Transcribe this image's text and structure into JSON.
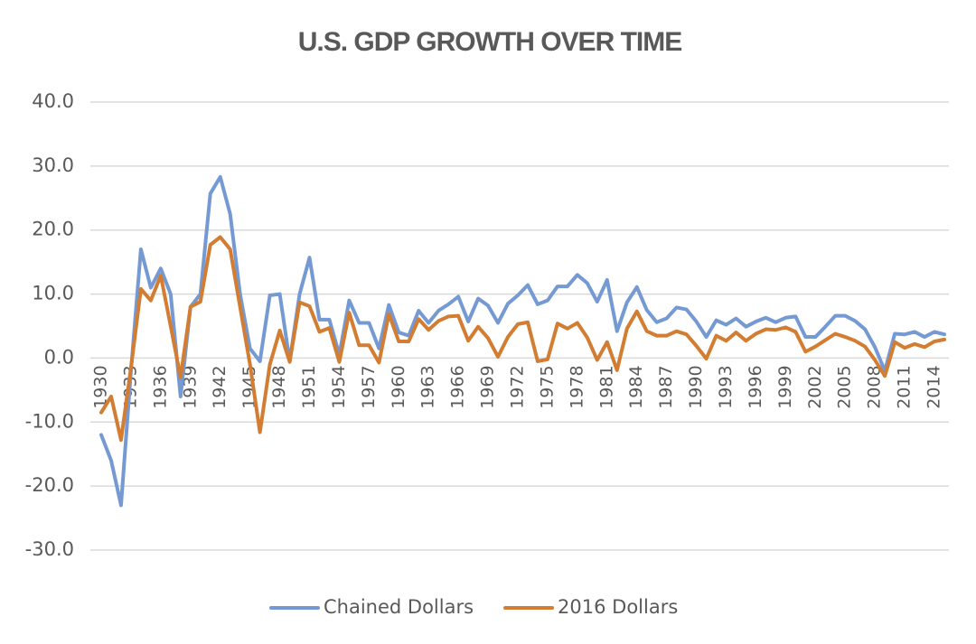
{
  "chart_data": {
    "type": "line",
    "title": "U.S. GDP GROWTH OVER TIME",
    "categories": [
      "1930",
      null,
      null,
      "1933",
      null,
      null,
      "1936",
      null,
      null,
      "1939",
      null,
      null,
      "1942",
      null,
      null,
      "1945",
      null,
      null,
      "1948",
      null,
      null,
      "1951",
      null,
      null,
      "1954",
      null,
      null,
      "1957",
      null,
      null,
      "1960",
      null,
      null,
      "1963",
      null,
      null,
      "1966",
      null,
      null,
      "1969",
      null,
      null,
      "1972",
      null,
      null,
      "1975",
      null,
      null,
      "1978",
      null,
      null,
      "1981",
      null,
      null,
      "1984",
      null,
      null,
      "1987",
      null,
      null,
      "1990",
      null,
      null,
      "1993",
      null,
      null,
      "1996",
      null,
      null,
      "1999",
      null,
      null,
      "2002",
      null,
      null,
      "2005",
      null,
      null,
      "2008",
      null,
      null,
      "2011",
      null,
      null,
      "2014",
      null
    ],
    "series": [
      {
        "name": "Chained Dollars",
        "color": "#7599d3",
        "values": [
          -12,
          -16,
          -23,
          -2,
          17,
          11,
          14,
          10,
          -6,
          8,
          10,
          25.7,
          28.3,
          22.5,
          10,
          1.5,
          -0.5,
          9.8,
          10,
          -0.5,
          10,
          15.7,
          6,
          6,
          0.5,
          9,
          5.5,
          5.5,
          1.5,
          8.3,
          4,
          3.5,
          7.4,
          5.5,
          7.4,
          8.4,
          9.6,
          5.7,
          9.3,
          8.2,
          5.5,
          8.5,
          9.8,
          11.4,
          8.4,
          9,
          11.2,
          11.2,
          13,
          11.7,
          8.8,
          12.2,
          4.2,
          8.7,
          11.1,
          7.5,
          5.6,
          6.2,
          7.9,
          7.6,
          5.7,
          3.3,
          5.9,
          5.2,
          6.2,
          4.9,
          5.7,
          6.3,
          5.6,
          6.3,
          6.5,
          3.3,
          3.3,
          4.9,
          6.6,
          6.6,
          5.8,
          4.5,
          1.7,
          -2,
          3.8,
          3.7,
          4.1,
          3.3,
          4.1,
          3.7
        ]
      },
      {
        "name": "2016 Dollars",
        "color": "#d27d32",
        "values": [
          -8.5,
          -6,
          -12.8,
          -1.5,
          10.8,
          9,
          12.9,
          5,
          -3,
          8,
          8.8,
          17.7,
          18.9,
          17,
          8,
          -1,
          -11.6,
          -1,
          4.3,
          -0.6,
          8.7,
          8.1,
          4.1,
          4.7,
          -0.6,
          7.1,
          2,
          2,
          -0.7,
          6.9,
          2.6,
          2.6,
          6.1,
          4.4,
          5.8,
          6.5,
          6.6,
          2.7,
          4.9,
          3.1,
          0.2,
          3.3,
          5.3,
          5.6,
          -0.5,
          -0.2,
          5.4,
          4.6,
          5.5,
          3.2,
          -0.3,
          2.5,
          -1.9,
          4.6,
          7.3,
          4.2,
          3.5,
          3.5,
          4.2,
          3.7,
          1.9,
          -0.1,
          3.5,
          2.7,
          4,
          2.7,
          3.8,
          4.5,
          4.4,
          4.8,
          4.1,
          1,
          1.8,
          2.8,
          3.8,
          3.3,
          2.7,
          1.8,
          -0.3,
          -2.8,
          2.5,
          1.6,
          2.2,
          1.7,
          2.6,
          2.9
        ]
      }
    ],
    "ylim": [
      -30,
      40
    ],
    "yticks": [
      {
        "value": -30,
        "label": "-30.0"
      },
      {
        "value": -20,
        "label": "-20.0"
      },
      {
        "value": -10,
        "label": "-10.0"
      },
      {
        "value": 0,
        "label": "0.0"
      },
      {
        "value": 10,
        "label": "10.0"
      },
      {
        "value": 20,
        "label": "20.0"
      },
      {
        "value": 30,
        "label": "30.0"
      },
      {
        "value": 40,
        "label": "40.0"
      }
    ],
    "grid": true,
    "legend": "bottom"
  }
}
